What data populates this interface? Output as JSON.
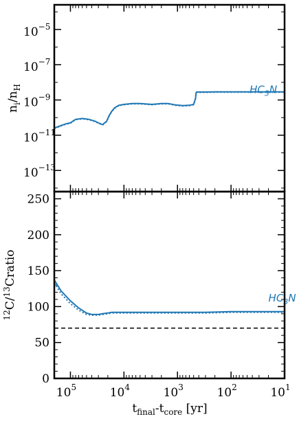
{
  "chart_data": [
    {
      "type": "line",
      "ylabel": {
        "main": "n",
        "sub1": "i",
        "mid": "/n",
        "sub2": "H"
      },
      "yscale": "log",
      "ylim_exp": [
        -14.2,
        -3.6
      ],
      "xscale": "log-reversed",
      "xlim": [
        200000,
        10
      ],
      "y_ticks": [
        {
          "base": "10",
          "exp": "−5",
          "value": -5
        },
        {
          "base": "10",
          "exp": "−7",
          "value": -7
        },
        {
          "base": "10",
          "exp": "−9",
          "value": -9
        },
        {
          "base": "10",
          "exp": "−11",
          "value": -11
        },
        {
          "base": "10",
          "exp": "−13",
          "value": -13
        }
      ],
      "annotation": {
        "text": "HC",
        "sub": "3",
        "tail": "N",
        "x": 45,
        "y_exp": -8.6
      },
      "series": [
        {
          "style": "solid",
          "color": "#1f77b4",
          "x": [
            200000,
            150000,
            120000,
            100000,
            90000,
            80000,
            60000,
            45000,
            35000,
            30000,
            25000,
            21000,
            19000,
            17000,
            15000,
            12500,
            10000,
            7000,
            5000,
            3000,
            2000,
            1500,
            1100,
            800,
            600,
            500,
            460,
            450,
            440,
            400,
            300,
            200,
            100,
            50,
            20,
            10
          ],
          "y_exp": [
            -10.6,
            -10.45,
            -10.35,
            -10.3,
            -10.2,
            -10.1,
            -10.05,
            -10.1,
            -10.2,
            -10.3,
            -10.4,
            -10.2,
            -9.9,
            -9.65,
            -9.45,
            -9.3,
            -9.25,
            -9.2,
            -9.2,
            -9.25,
            -9.2,
            -9.2,
            -9.28,
            -9.32,
            -9.3,
            -9.25,
            -8.9,
            -8.6,
            -8.55,
            -8.55,
            -8.55,
            -8.54,
            -8.54,
            -8.54,
            -8.54,
            -8.54
          ]
        },
        {
          "style": "dotted",
          "color": "#1f77b4",
          "x": [
            200000,
            150000,
            120000,
            100000,
            90000,
            80000,
            60000,
            45000,
            35000,
            30000,
            25000,
            21000,
            19000,
            17000,
            15000,
            12500,
            10000,
            7000,
            5000,
            3000,
            2000,
            1500,
            1100,
            800,
            600,
            500,
            460,
            450,
            440,
            400,
            300,
            200,
            100,
            50,
            20,
            10
          ],
          "y_exp": [
            -10.62,
            -10.47,
            -10.37,
            -10.32,
            -10.22,
            -10.12,
            -10.07,
            -10.12,
            -10.22,
            -10.32,
            -10.42,
            -10.22,
            -9.92,
            -9.67,
            -9.47,
            -9.32,
            -9.27,
            -9.22,
            -9.22,
            -9.27,
            -9.22,
            -9.22,
            -9.3,
            -9.34,
            -9.32,
            -9.27,
            -8.92,
            -8.62,
            -8.57,
            -8.57,
            -8.57,
            -8.56,
            -8.56,
            -8.56,
            -8.56,
            -8.56
          ]
        }
      ]
    },
    {
      "type": "line",
      "ylabel": {
        "sup1": "12",
        "p1": "C/",
        "sup2": "13",
        "p2": "Cratio"
      },
      "xlabel": {
        "p1": "t",
        "sub1": "final",
        "p2": "-t",
        "sub2": "core",
        "p3": " [yr]"
      },
      "xscale": "log-reversed",
      "xlim": [
        200000,
        10
      ],
      "ylim": [
        0,
        260
      ],
      "y_ticks": [
        "0",
        "50",
        "100",
        "150",
        "200",
        "250"
      ],
      "x_ticks": [
        {
          "base": "10",
          "exp": "5",
          "value": 100000
        },
        {
          "base": "10",
          "exp": "4",
          "value": 10000
        },
        {
          "base": "10",
          "exp": "3",
          "value": 1000
        },
        {
          "base": "10",
          "exp": "2",
          "value": 100
        },
        {
          "base": "10",
          "exp": "1",
          "value": 10
        }
      ],
      "annotation": {
        "text": "HC",
        "sub": "3",
        "tail": "N",
        "x": 20,
        "y": 107
      },
      "reference_line": {
        "y": 70,
        "style": "dashed",
        "color": "#000000"
      },
      "series": [
        {
          "style": "solid",
          "color": "#1f77b4",
          "x": [
            200000,
            150000,
            100000,
            70000,
            50000,
            40000,
            30000,
            25000,
            20000,
            17000,
            15000,
            10000,
            5000,
            1000,
            300,
            100,
            30,
            10
          ],
          "y": [
            137,
            122,
            108,
            98,
            91,
            89,
            89,
            90,
            91,
            92,
            92,
            92,
            92,
            92,
            92,
            93,
            93,
            93
          ]
        },
        {
          "style": "dotted",
          "color": "#1f77b4",
          "x": [
            200000,
            150000,
            100000,
            70000,
            50000,
            40000,
            30000,
            25000,
            20000,
            17000,
            15000,
            10000,
            5000,
            1000,
            300,
            100,
            30,
            10
          ],
          "y": [
            133,
            118,
            104,
            95,
            89,
            88,
            88,
            89,
            90,
            91,
            91,
            91,
            91,
            91,
            91,
            92,
            92,
            92
          ]
        }
      ]
    }
  ]
}
